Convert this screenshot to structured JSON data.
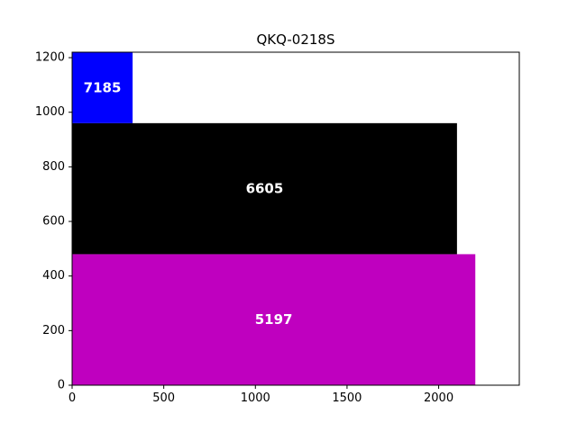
{
  "chart_data": {
    "type": "treemap",
    "title": "QKQ-0218S",
    "xlabel": "",
    "ylabel": "",
    "xlim": [
      0,
      2440
    ],
    "ylim": [
      0,
      1220
    ],
    "x_ticks": [
      0,
      500,
      1000,
      1500,
      2000
    ],
    "y_ticks": [
      0,
      200,
      400,
      600,
      800,
      1000,
      1200
    ],
    "grid": false,
    "rectangles": [
      {
        "label": "5197",
        "x0": 0,
        "x1": 2200,
        "y0": 0,
        "y1": 480,
        "color": "#bf00bf"
      },
      {
        "label": "6605",
        "x0": 0,
        "x1": 2100,
        "y0": 480,
        "y1": 960,
        "color": "#000000"
      },
      {
        "label": "7185",
        "x0": 0,
        "x1": 330,
        "y0": 960,
        "y1": 1220,
        "color": "#0000ff"
      }
    ]
  }
}
